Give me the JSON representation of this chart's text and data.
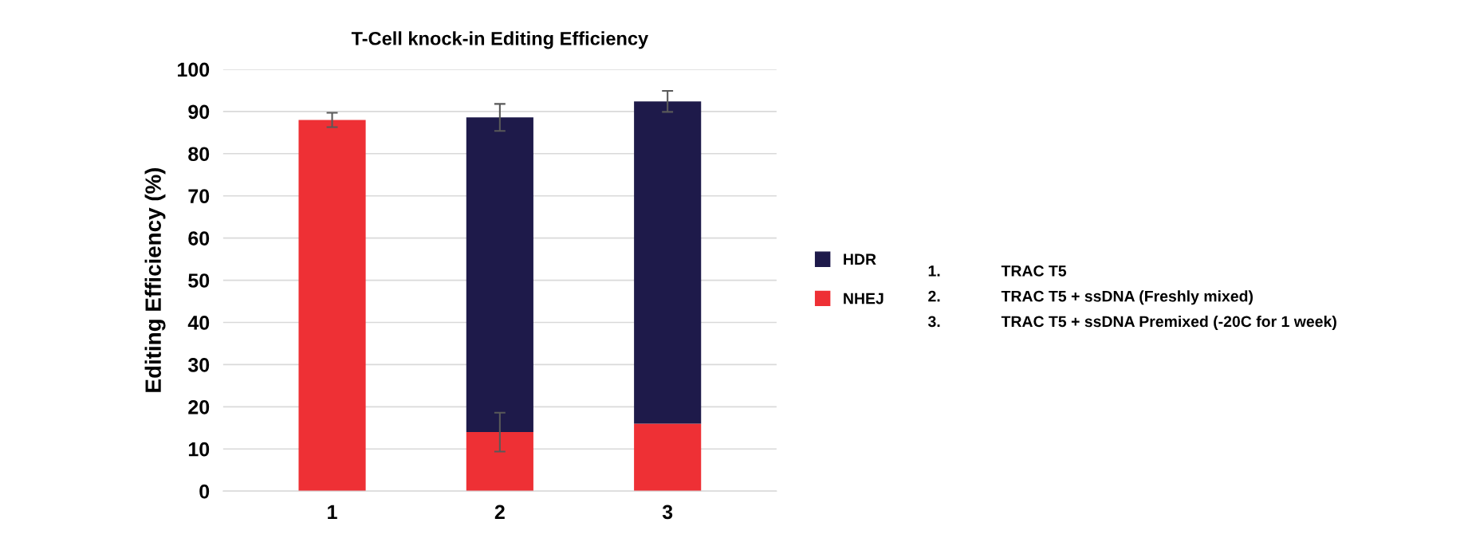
{
  "chart_data": {
    "type": "bar",
    "stacked": true,
    "title": "T-Cell knock-in Editing Efficiency",
    "ylabel": "Editing Efficiency (%)",
    "categories": [
      "1",
      "2",
      "3"
    ],
    "series": [
      {
        "name": "NHEJ",
        "color": "#ee3035",
        "values": [
          88,
          14,
          16
        ],
        "errors": [
          1.7,
          4.6,
          null
        ]
      },
      {
        "name": "HDR",
        "color": "#1e1a4a",
        "values": [
          null,
          74.6,
          76.4
        ],
        "errors": [
          null,
          3.2,
          2.5
        ]
      }
    ],
    "ylim": [
      0,
      100
    ],
    "yticks": [
      0,
      10,
      20,
      30,
      40,
      50,
      60,
      70,
      80,
      90,
      100
    ],
    "grid": "y",
    "legend": "right",
    "marker": "square",
    "annotations": [
      "1. TRAC T5",
      "2. TRAC T5 + ssDNA (Freshly mixed)",
      "3. TRAC T5 + ssDNA Premixed (-20C for 1 week)"
    ]
  }
}
